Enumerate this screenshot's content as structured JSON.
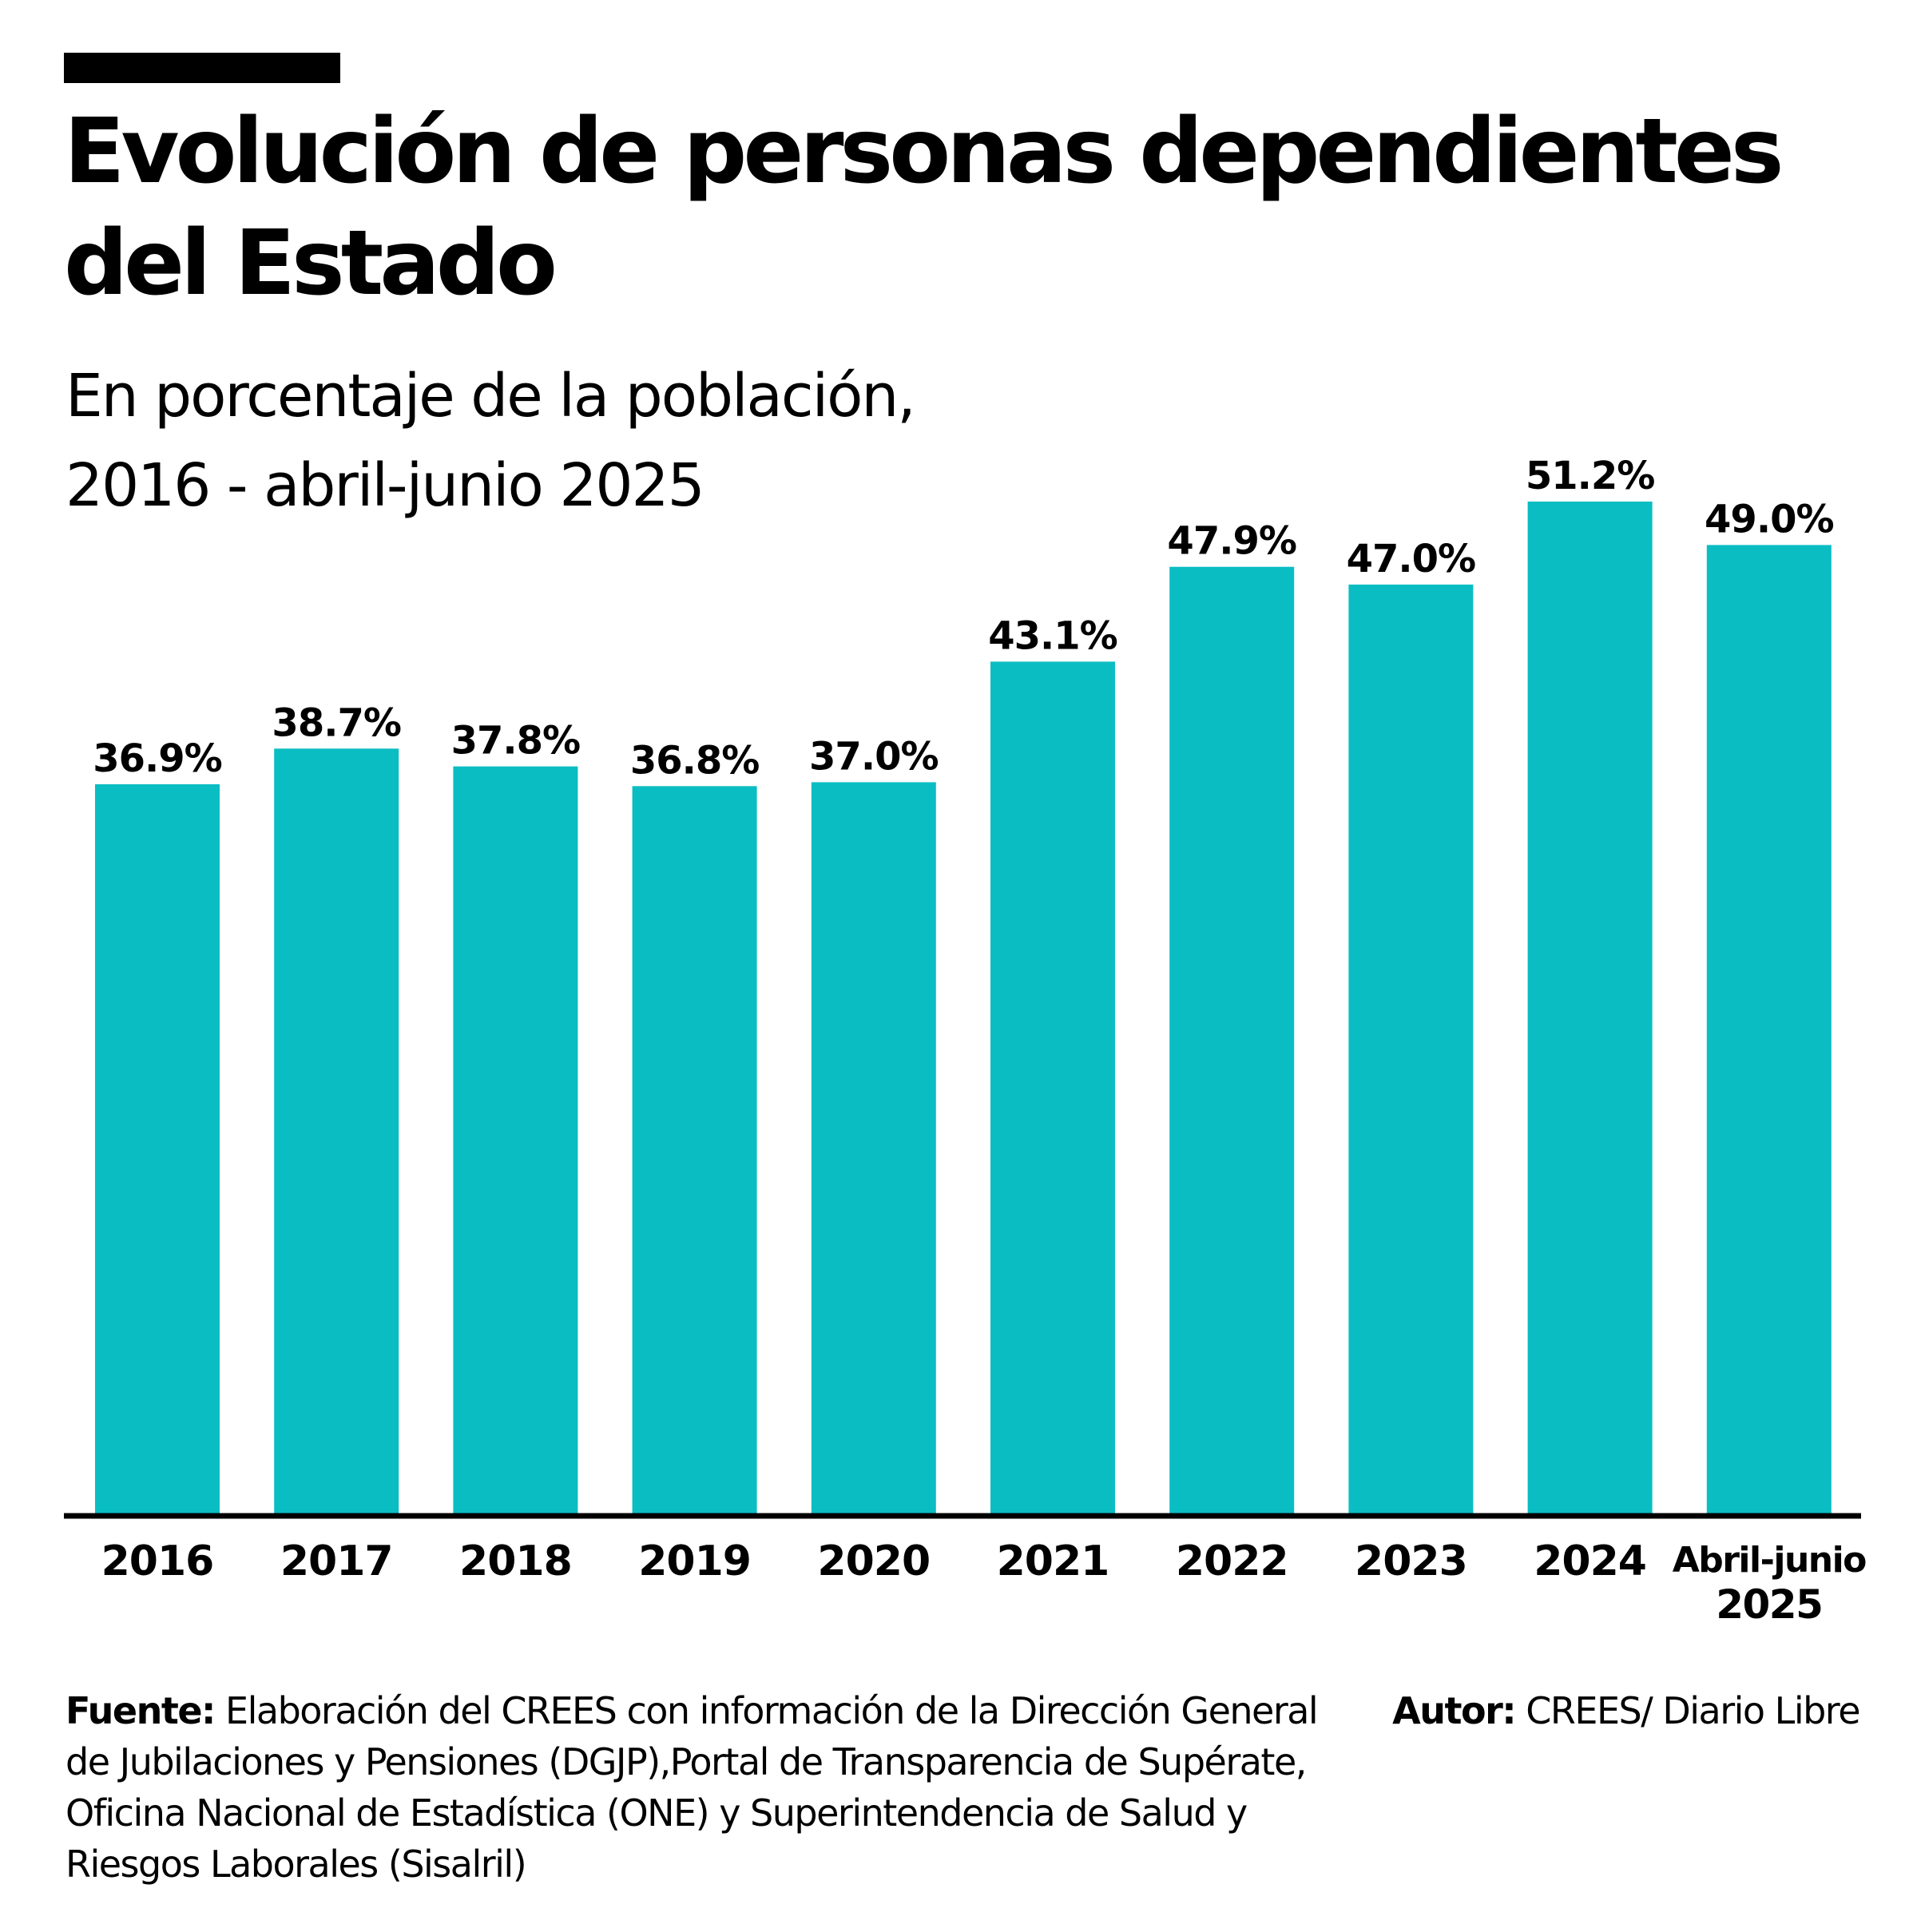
{
  "header": {
    "title": "Evolución de personas dependientes del Estado",
    "subtitle_line1": "En porcentaje de la población,",
    "subtitle_line2": "2016 - abril-junio 2025"
  },
  "colors": {
    "bar": "#0ABDC3",
    "text": "#000000",
    "axis": "#000000",
    "background": "#FFFFFF"
  },
  "chart_data": {
    "type": "bar",
    "title": "Evolución de personas dependientes del Estado",
    "subtitle": "En porcentaje de la población, 2016 - abril-junio 2025",
    "categories": [
      [
        "2016"
      ],
      [
        "2017"
      ],
      [
        "2018"
      ],
      [
        "2019"
      ],
      [
        "2020"
      ],
      [
        "2021"
      ],
      [
        "2022"
      ],
      [
        "2023"
      ],
      [
        "2024"
      ],
      [
        "Abril-junio",
        "2025"
      ]
    ],
    "values": [
      36.9,
      38.7,
      37.8,
      36.8,
      37.0,
      43.1,
      47.9,
      47.0,
      51.2,
      49.0
    ],
    "value_labels": [
      "36.9%",
      "38.7%",
      "37.8%",
      "36.8%",
      "37.0%",
      "43.1%",
      "47.9%",
      "47.0%",
      "51.2%",
      "49.0%"
    ],
    "xlabel": "",
    "ylabel": "",
    "ylim": [
      0,
      51.2
    ],
    "grid": false,
    "legend": "none"
  },
  "footer": {
    "source_label": "Fuente:",
    "source_text": " Elaboración del CREES con información de la Dirección General de Jubilaciones y Pensiones (DGJP),Portal de Transparencia de Supérate, Oficina Nacional de Estadística (ONE) y Superintendencia de Salud y Riesgos Laborales (Sisalril)",
    "author_label": "Autor:",
    "author_text": " CREES/ Diario Libre"
  }
}
